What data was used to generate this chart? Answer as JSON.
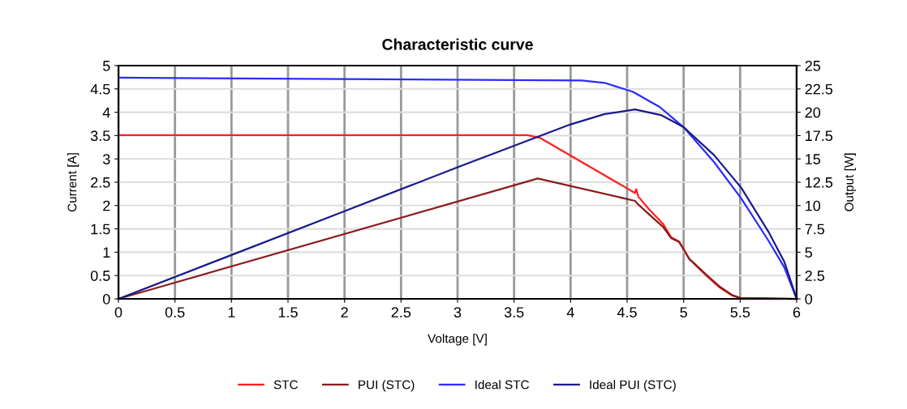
{
  "chart_data": {
    "type": "line",
    "title": "Characteristic curve",
    "xlabel": "Voltage [V]",
    "ylabel": "Current [A]",
    "y2label": "Output [W]",
    "xlim": [
      0,
      6
    ],
    "xticks": [
      0,
      0.5,
      1,
      1.5,
      2,
      2.5,
      3,
      3.5,
      4,
      4.5,
      5,
      5.5,
      6
    ],
    "ylim": [
      0,
      5
    ],
    "yticks": [
      0,
      0.5,
      1,
      1.5,
      2,
      2.5,
      3,
      3.5,
      4,
      4.5,
      5
    ],
    "y2lim": [
      0,
      25
    ],
    "y2ticks": [
      0,
      2.5,
      5,
      7.5,
      10,
      12.5,
      15,
      17.5,
      20,
      22.5,
      25
    ],
    "grid": true,
    "legend": "bottom",
    "marker": "none",
    "line_style": "solid",
    "series": [
      {
        "name": "STC",
        "color": "#ff2020",
        "x": [
          0,
          3.62,
          3.73,
          4.57,
          4.58,
          4.6,
          4.69,
          4.82,
          4.89,
          4.96,
          5.05,
          5.2,
          5.32,
          5.43,
          5.5,
          6
        ],
        "values": [
          3.51,
          3.51,
          3.45,
          2.27,
          2.35,
          2.19,
          1.93,
          1.6,
          1.32,
          1.23,
          0.85,
          0.5,
          0.24,
          0.07,
          0.02,
          0
        ]
      },
      {
        "name": "PUI (STC)",
        "color": "#8b1a1a",
        "axis": "y2",
        "x": [
          0,
          3.71,
          4.57,
          4.6,
          4.69,
          4.82,
          4.89,
          4.96,
          5.05,
          5.2,
          5.32,
          5.43,
          5.5,
          6
        ],
        "values": [
          0,
          12.9,
          10.5,
          10.1,
          9.1,
          7.7,
          6.5,
          6.1,
          4.3,
          2.6,
          1.3,
          0.4,
          0.1,
          0
        ]
      },
      {
        "name": "Ideal STC",
        "color": "#2b2bff",
        "x": [
          0,
          2,
          4.1,
          4.3,
          4.55,
          4.79,
          5.0,
          5.27,
          5.51,
          5.75,
          5.89,
          6
        ],
        "values": [
          4.74,
          4.71,
          4.68,
          4.63,
          4.44,
          4.11,
          3.68,
          2.93,
          2.15,
          1.25,
          0.68,
          0
        ]
      },
      {
        "name": "Ideal PUI (STC)",
        "color": "#1a1a8c",
        "axis": "y2",
        "x": [
          0,
          1,
          2,
          3,
          3.5,
          4,
          4.3,
          4.57,
          4.8,
          5.0,
          5.27,
          5.51,
          5.75,
          5.89,
          6
        ],
        "values": [
          0,
          4.7,
          9.4,
          14.1,
          16.4,
          18.7,
          19.8,
          20.3,
          19.7,
          18.4,
          15.4,
          11.9,
          7.2,
          4.0,
          0
        ]
      }
    ]
  }
}
